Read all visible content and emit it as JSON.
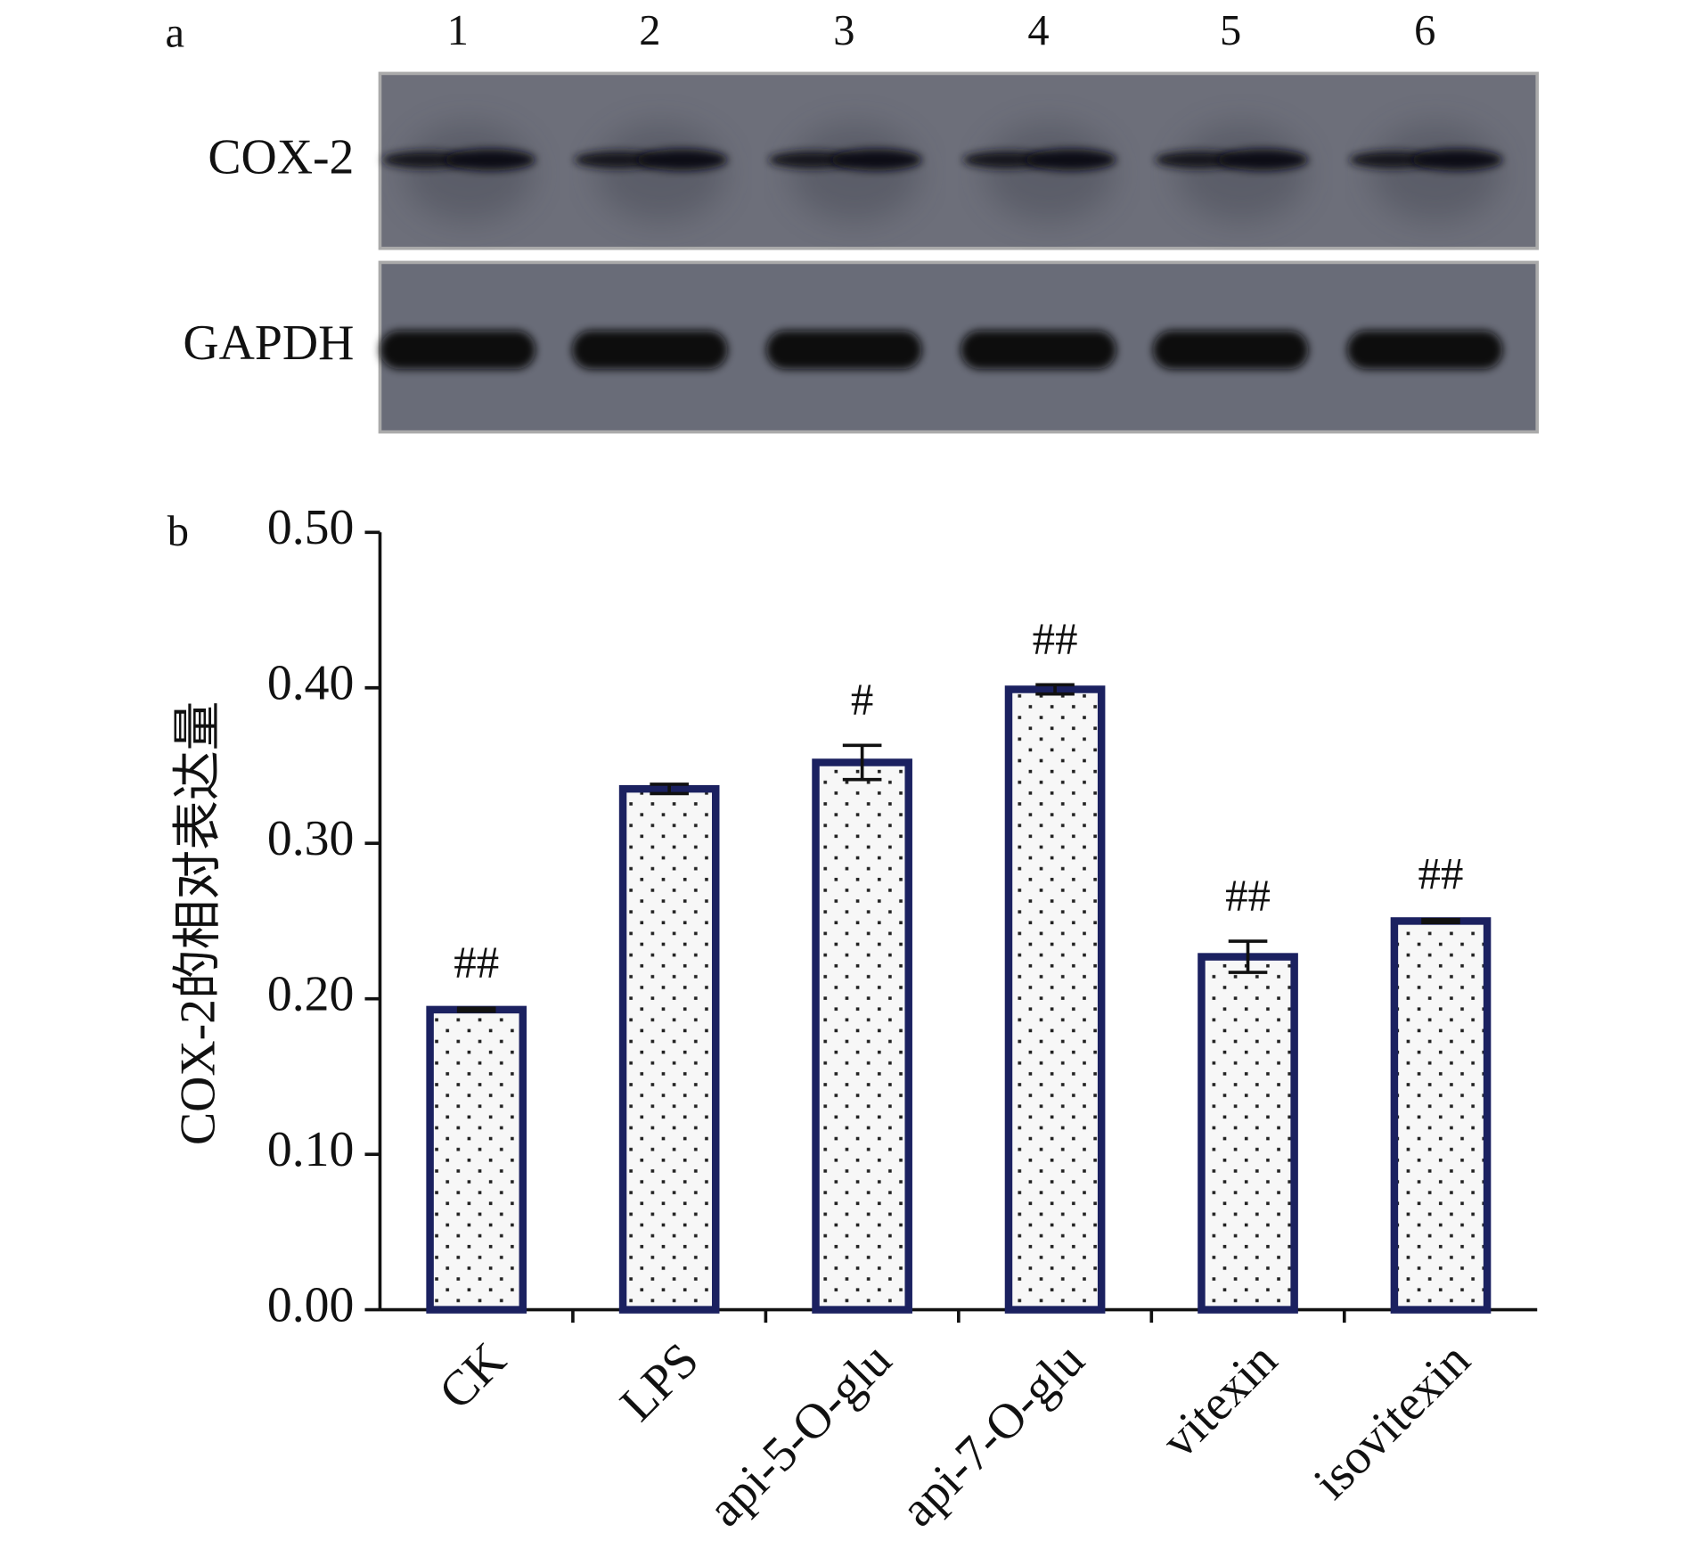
{
  "blot": {
    "panel_label": "a",
    "lanes": [
      "1",
      "2",
      "3",
      "4",
      "5",
      "6"
    ],
    "rows": [
      "COX-2",
      "GAPDH"
    ]
  },
  "chart_data": {
    "type": "bar",
    "panel_label": "b",
    "y_label": "COX-2的相对表达量",
    "categories": [
      "CK",
      "LPS",
      "api-5-O-glu",
      "api-7-O-glu",
      "vitexin",
      "isovitexin"
    ],
    "values": [
      0.193,
      0.335,
      0.352,
      0.399,
      0.227,
      0.25
    ],
    "errors": [
      0.001,
      0.003,
      0.011,
      0.003,
      0.01,
      0.001
    ],
    "annotations": [
      "##",
      null,
      "#",
      "##",
      "##",
      "##"
    ],
    "color": "#1b2160",
    "ylim": [
      0,
      0.5
    ],
    "yticks": [
      {
        "value": 0,
        "label": "0.00"
      },
      {
        "value": 0.1,
        "label": "0.10"
      },
      {
        "value": 0.2,
        "label": "0.20"
      },
      {
        "value": 0.3,
        "label": "0.30"
      },
      {
        "value": 0.4,
        "label": "0.40"
      },
      {
        "value": 0.5,
        "label": "0.50"
      }
    ]
  }
}
